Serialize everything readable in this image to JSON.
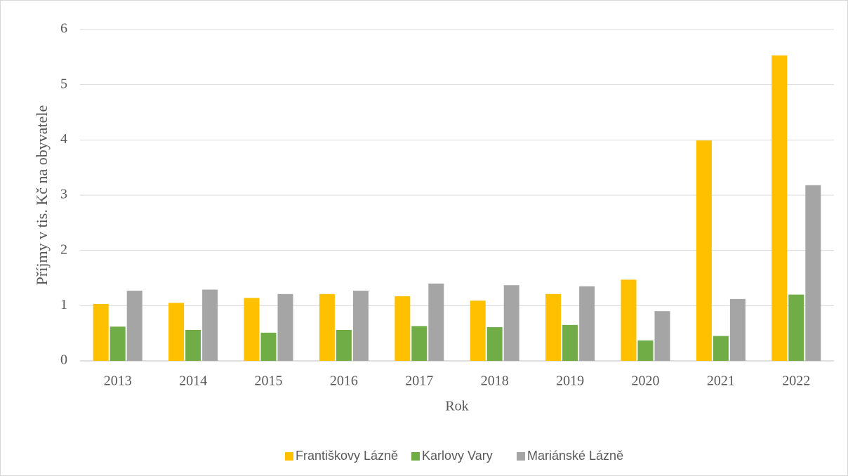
{
  "chart_data": {
    "type": "bar",
    "x_label": "Rok",
    "y_label": "Příjmy v tis. Kč na obyvatele",
    "categories": [
      "2013",
      "2014",
      "2015",
      "2016",
      "2017",
      "2018",
      "2019",
      "2020",
      "2021",
      "2022"
    ],
    "series": [
      {
        "name": "Františkovy Lázně",
        "color": "#FFC000",
        "values": [
          1.03,
          1.05,
          1.14,
          1.21,
          1.17,
          1.09,
          1.21,
          1.47,
          3.99,
          5.53
        ]
      },
      {
        "name": "Karlovy Vary",
        "color": "#70AD47",
        "values": [
          0.62,
          0.56,
          0.51,
          0.56,
          0.63,
          0.61,
          0.65,
          0.37,
          0.45,
          1.2
        ]
      },
      {
        "name": "Mariánské Lázně",
        "color": "#A5A5A5",
        "values": [
          1.27,
          1.29,
          1.21,
          1.27,
          1.4,
          1.37,
          1.35,
          0.9,
          1.12,
          3.18
        ]
      }
    ],
    "ylim": [
      0,
      6
    ],
    "yticks": [
      0,
      1,
      2,
      3,
      4,
      5,
      6
    ],
    "grid": true,
    "legend": "bottom"
  }
}
